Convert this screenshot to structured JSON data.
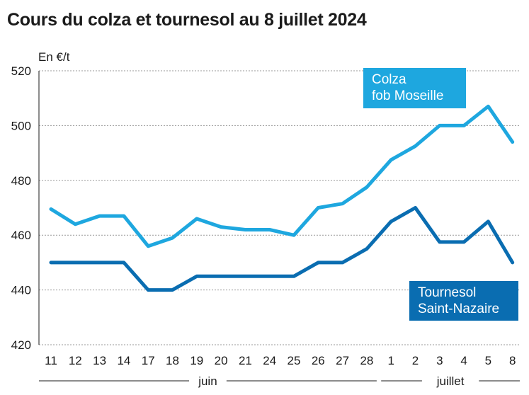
{
  "chart_data": {
    "type": "line",
    "title": "Cours du colza et tournesol au 8 juillet 2024",
    "ylabel": "En €/t",
    "ylim": [
      420,
      520
    ],
    "yticks": [
      420,
      440,
      460,
      480,
      500,
      520
    ],
    "categories": [
      "11",
      "12",
      "13",
      "14",
      "17",
      "18",
      "19",
      "20",
      "21",
      "24",
      "25",
      "26",
      "27",
      "28",
      "1",
      "2",
      "3",
      "4",
      "5",
      "8"
    ],
    "month_groups": [
      {
        "label": "juin",
        "from": 0,
        "to": 13
      },
      {
        "label": "juillet",
        "from": 14,
        "to": 19
      }
    ],
    "grid": true,
    "series": [
      {
        "name_lines": [
          "Colza",
          "fob Moseille"
        ],
        "color": "#1ea7df",
        "label_position": "top-right",
        "values": [
          469.5,
          464,
          467,
          467,
          456,
          459,
          466,
          463,
          462,
          462,
          460,
          470,
          471.5,
          477.5,
          487.5,
          492.5,
          500,
          500,
          507,
          494
        ]
      },
      {
        "name_lines": [
          "Tournesol",
          "Saint-Nazaire"
        ],
        "color": "#0a6db1",
        "label_position": "bottom-right",
        "values": [
          450,
          450,
          450,
          450,
          440,
          440,
          445,
          445,
          445,
          445,
          445,
          450,
          450,
          455,
          465,
          470,
          457.5,
          457.5,
          465,
          450
        ]
      }
    ]
  }
}
